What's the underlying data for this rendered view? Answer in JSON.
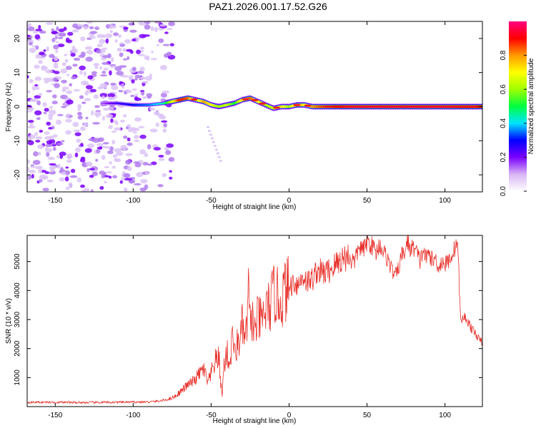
{
  "figure": {
    "title": "PAZ1.2026.001.17.52.G26"
  },
  "chart_data": [
    {
      "type": "heatmap",
      "title": "PAZ1.2026.001.17.52.G26",
      "xlabel": "Height of straight line (km)",
      "ylabel": "Frequency (Hz)",
      "xlim": [
        -168,
        124
      ],
      "ylim": [
        -25,
        25
      ],
      "xticks": [
        -150,
        -100,
        -50,
        0,
        50,
        100
      ],
      "xtick_labels": [
        "-150",
        "-100",
        "-50",
        "0",
        "50",
        "100"
      ],
      "yticks": [
        -20,
        -10,
        0,
        10,
        20
      ],
      "ytick_labels": [
        "-20",
        "-10",
        "0",
        "10",
        "20"
      ],
      "colorbar": {
        "label": "Normalized spectral amplitude",
        "range": [
          0,
          1
        ],
        "ticks": [
          0.0,
          0.2,
          0.4,
          0.6,
          0.8
        ],
        "tick_labels": [
          "0.0",
          "0.2",
          "0.4",
          "0.6",
          "0.8"
        ],
        "colors": [
          "#ffffff",
          "#d8b4f5",
          "#7b00ff",
          "#0000ff",
          "#00e5ff",
          "#00ff40",
          "#a0ff00",
          "#ffff00",
          "#ff9900",
          "#ff0000",
          "#ff0080"
        ]
      },
      "noise_region_x": [
        -168,
        -75
      ],
      "frequency_track": {
        "x": [
          -120,
          -110,
          -100,
          -90,
          -80,
          -70,
          -65,
          -60,
          -55,
          -50,
          -45,
          -40,
          -35,
          -30,
          -25,
          -20,
          -15,
          -10,
          -5,
          0,
          5,
          10,
          15,
          20,
          30,
          40,
          60,
          80,
          100,
          124
        ],
        "y": [
          1.0,
          1.0,
          0.5,
          0.5,
          1.0,
          2.0,
          2.5,
          2.0,
          1.5,
          0.5,
          0.0,
          0.5,
          1.0,
          2.0,
          2.5,
          1.5,
          0.5,
          -0.5,
          0.0,
          0.0,
          0.5,
          0.5,
          0.0,
          0.0,
          0.0,
          0.0,
          0.0,
          0.0,
          0.0,
          0.0
        ],
        "amplitude": [
          0.15,
          0.25,
          0.3,
          0.35,
          0.45,
          0.9,
          0.85,
          0.6,
          0.8,
          0.7,
          0.6,
          0.65,
          0.5,
          0.75,
          0.85,
          0.7,
          0.6,
          0.65,
          0.75,
          0.6,
          0.85,
          0.7,
          0.8,
          0.85,
          0.9,
          0.95,
          0.95,
          0.95,
          0.95,
          0.9
        ]
      }
    },
    {
      "type": "line",
      "xlabel": "Height of straight line (km)",
      "ylabel": "SNR (10 * v/v)",
      "xlim": [
        -168,
        124
      ],
      "ylim": [
        0,
        5900
      ],
      "xticks": [
        -150,
        -100,
        -50,
        0,
        50,
        100
      ],
      "xtick_labels": [
        "-150",
        "-100",
        "-50",
        "0",
        "50",
        "100"
      ],
      "yticks": [
        1000,
        2000,
        3000,
        4000,
        5000
      ],
      "ytick_labels": [
        "1000",
        "2000",
        "3000",
        "4000",
        "5000"
      ],
      "color": "#e8302a",
      "series": [
        {
          "name": "SNR",
          "x": [
            -168,
            -150,
            -130,
            -110,
            -90,
            -82,
            -78,
            -75,
            -72,
            -70,
            -68,
            -65,
            -62,
            -60,
            -58,
            -55,
            -52,
            -50,
            -48,
            -45,
            -43,
            -42,
            -40,
            -38,
            -36,
            -35,
            -33,
            -31,
            -30,
            -28,
            -27,
            -26,
            -25,
            -24,
            -22,
            -20,
            -18,
            -15,
            -12,
            -10,
            -8,
            -5,
            -3,
            0,
            3,
            6,
            9,
            12,
            15,
            18,
            20,
            23,
            26,
            30,
            34,
            38,
            42,
            45,
            48,
            50,
            52,
            54,
            56,
            58,
            60,
            62,
            64,
            66,
            68,
            70,
            72,
            74,
            76,
            78,
            80,
            82,
            84,
            86,
            88,
            90,
            92,
            94,
            96,
            98,
            100,
            102,
            104,
            106,
            107,
            108,
            108.5,
            110,
            112,
            114,
            116,
            118,
            120,
            122,
            124
          ],
          "y": [
            150,
            150,
            140,
            150,
            160,
            200,
            250,
            300,
            400,
            500,
            600,
            750,
            850,
            950,
            1100,
            1300,
            800,
            1100,
            1500,
            1700,
            300,
            1300,
            1900,
            1400,
            2700,
            1700,
            2200,
            2400,
            2800,
            2200,
            2900,
            4000,
            2700,
            3200,
            2500,
            3100,
            2900,
            3300,
            3500,
            3900,
            3800,
            3600,
            4000,
            4100,
            4300,
            4200,
            4500,
            4300,
            4400,
            4700,
            4650,
            4600,
            4700,
            4900,
            5100,
            5200,
            5000,
            5500,
            5400,
            5700,
            5600,
            5500,
            5300,
            5600,
            5400,
            5200,
            5000,
            4700,
            4500,
            4700,
            5200,
            5300,
            5700,
            5400,
            5500,
            5300,
            5000,
            5400,
            5100,
            5300,
            5000,
            5100,
            4800,
            5000,
            4900,
            5000,
            5200,
            5400,
            5700,
            5500,
            5200,
            2900,
            3100,
            3000,
            2800,
            2600,
            2500,
            2300,
            2200
          ]
        }
      ]
    }
  ]
}
